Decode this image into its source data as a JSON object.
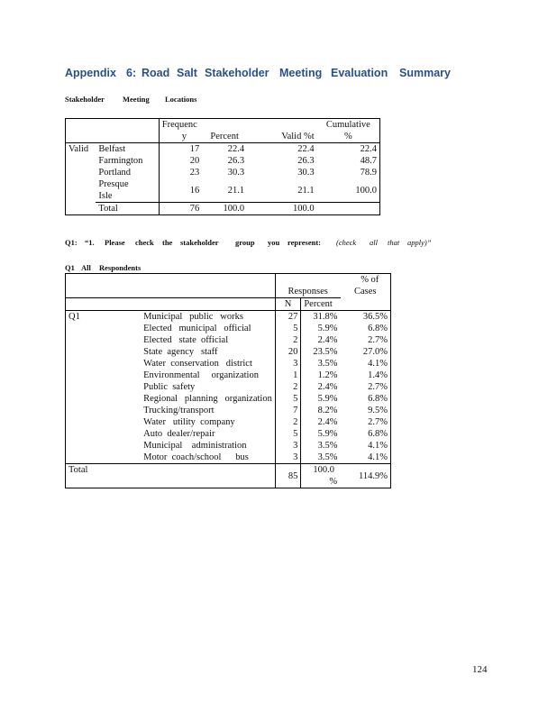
{
  "title": {
    "w1": "Appendix",
    "w2": "6:",
    "w3": "Road",
    "w4": "Salt",
    "w5": "Stakeholder",
    "w6": "Meeting",
    "w7": "Evaluation",
    "w8": "Summary"
  },
  "caption1": {
    "w1": "Stakeholder",
    "w2": "Meeting",
    "w3": "Locations"
  },
  "table1": {
    "headers": {
      "freq_a": "Frequenc",
      "freq_b": "y",
      "percent": "Percent",
      "valid_pct": "Valid  %t",
      "cum_a": "Cumulative",
      "cum_b": "%"
    },
    "group_label": "Valid",
    "rows": [
      {
        "label": "Belfast",
        "freq": "17",
        "pct": "22.4",
        "valid": "22.4",
        "cum": "22.4"
      },
      {
        "label": "Farmington",
        "freq": "20",
        "pct": "26.3",
        "valid": "26.3",
        "cum": "48.7"
      },
      {
        "label": "Portland",
        "freq": "23",
        "pct": "30.3",
        "valid": "30.3",
        "cum": "78.9"
      },
      {
        "label_a": "Presque",
        "label_b": "Isle",
        "freq": "16",
        "pct": "21.1",
        "valid": "21.1",
        "cum": "100.0"
      }
    ],
    "total": {
      "label": "Total",
      "freq": "76",
      "pct": "100.0",
      "valid": "100.0"
    }
  },
  "q1_line": {
    "w1": "Q1:",
    "w2": "“1.",
    "w3": "Please",
    "w4": "check",
    "w5": "the",
    "w6": "stakeholder",
    "w7": "group",
    "w8": "you",
    "w9": "represent:",
    "w10": "(check",
    "w11": "all",
    "w12": "that",
    "w13": "apply)”"
  },
  "caption2": {
    "w1": "Q1",
    "w2": "All",
    "w3": "Respondents"
  },
  "table2": {
    "headers": {
      "responses": "Responses",
      "pct_of_a": "% of",
      "pct_of_b": "Cases",
      "n": "N",
      "percent": "Percent"
    },
    "group_label": "Q1",
    "rows": [
      {
        "label": "Municipal   public   works",
        "n": "27",
        "pct": "31.8%",
        "cases": "36.5%"
      },
      {
        "label": "Elected   municipal   official",
        "n": "5",
        "pct": "5.9%",
        "cases": "6.8%"
      },
      {
        "label": "Elected   state  official",
        "n": "2",
        "pct": "2.4%",
        "cases": "2.7%"
      },
      {
        "label": "State  agency   staff",
        "n": "20",
        "pct": "23.5%",
        "cases": "27.0%"
      },
      {
        "label": "Water  conservation   district",
        "n": "3",
        "pct": "3.5%",
        "cases": "4.1%"
      },
      {
        "label": "Environmental     organization",
        "n": "1",
        "pct": "1.2%",
        "cases": "1.4%"
      },
      {
        "label": "Public  safety",
        "n": "2",
        "pct": "2.4%",
        "cases": "2.7%"
      },
      {
        "label": "Regional   planning   organization",
        "n": "5",
        "pct": "5.9%",
        "cases": "6.8%"
      },
      {
        "label": "Trucking/transport",
        "n": "7",
        "pct": "8.2%",
        "cases": "9.5%"
      },
      {
        "label": "Water   utility  company",
        "n": "2",
        "pct": "2.4%",
        "cases": "2.7%"
      },
      {
        "label": "Auto  dealer/repair",
        "n": "5",
        "pct": "5.9%",
        "cases": "6.8%"
      },
      {
        "label": "Municipal    administration",
        "n": "3",
        "pct": "3.5%",
        "cases": "4.1%"
      },
      {
        "label": "Motor  coach/school      bus",
        "n": "3",
        "pct": "3.5%",
        "cases": "4.1%"
      }
    ],
    "total": {
      "label": "Total",
      "n": "85",
      "pct_a": "100.0",
      "pct_b": "%",
      "cases": "114.9%"
    }
  },
  "page_number": "124"
}
